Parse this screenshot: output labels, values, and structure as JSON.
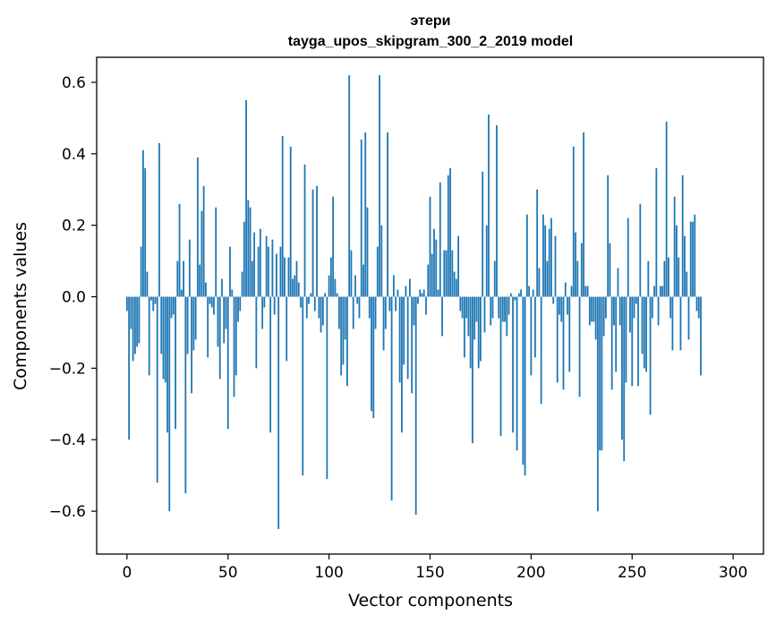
{
  "chart_data": {
    "type": "bar",
    "title": "этери",
    "subtitle": "tayga_upos_skipgram_300_2_2019 model",
    "xlabel": "Vector components",
    "ylabel": "Components values",
    "xlim": [
      -15,
      315
    ],
    "ylim": [
      -0.72,
      0.67
    ],
    "xticks": [
      0,
      50,
      100,
      150,
      200,
      250,
      300
    ],
    "yticks": [
      0.6,
      0.4,
      0.2,
      0.0,
      -0.2,
      -0.4,
      -0.6
    ],
    "ytick_labels": [
      "0.6",
      "0.4",
      "0.2",
      "0.0",
      "−0.2",
      "−0.4",
      "−0.6"
    ],
    "bar_color": "#1f77b4",
    "values": [
      -0.04,
      -0.4,
      -0.09,
      -0.18,
      -0.16,
      -0.14,
      -0.13,
      0.14,
      0.41,
      0.36,
      0.07,
      -0.22,
      -0.01,
      -0.04,
      -0.02,
      -0.52,
      0.43,
      -0.16,
      -0.23,
      -0.24,
      -0.38,
      -0.6,
      -0.06,
      -0.05,
      -0.37,
      0.1,
      0.26,
      0.02,
      0.1,
      -0.55,
      -0.16,
      0.16,
      -0.27,
      -0.15,
      -0.12,
      0.39,
      0.09,
      0.24,
      0.31,
      0.04,
      -0.17,
      -0.02,
      -0.03,
      -0.05,
      0.25,
      -0.14,
      -0.23,
      0.05,
      -0.13,
      -0.09,
      -0.37,
      0.14,
      0.02,
      -0.28,
      -0.22,
      -0.07,
      -0.04,
      0.07,
      0.21,
      0.55,
      0.27,
      0.25,
      0.1,
      0.18,
      -0.2,
      0.14,
      0.19,
      -0.09,
      -0.03,
      0.17,
      0.14,
      -0.38,
      0.16,
      -0.05,
      0.12,
      -0.65,
      0.14,
      0.45,
      0.11,
      -0.18,
      0.11,
      0.42,
      0.05,
      0.06,
      0.1,
      0.04,
      -0.03,
      -0.5,
      0.37,
      -0.06,
      -0.02,
      0.01,
      0.3,
      -0.04,
      0.31,
      -0.06,
      -0.1,
      -0.08,
      0.01,
      -0.51,
      0.06,
      0.11,
      0.28,
      0.05,
      0.01,
      -0.09,
      -0.22,
      -0.19,
      -0.12,
      -0.25,
      0.62,
      0.13,
      -0.09,
      0.06,
      -0.02,
      -0.06,
      0.44,
      0.09,
      0.46,
      0.25,
      -0.06,
      -0.32,
      -0.34,
      -0.09,
      0.14,
      0.62,
      0.2,
      -0.15,
      -0.09,
      0.46,
      -0.04,
      -0.57,
      0.06,
      -0.04,
      0.02,
      -0.24,
      -0.38,
      -0.19,
      0.03,
      -0.23,
      0.05,
      -0.27,
      -0.08,
      -0.61,
      -0.02,
      0.02,
      0.01,
      0.02,
      -0.05,
      0.09,
      0.28,
      0.12,
      0.19,
      0.16,
      0.02,
      0.32,
      -0.11,
      0.13,
      0.13,
      0.34,
      0.36,
      0.13,
      0.07,
      0.05,
      0.17,
      -0.04,
      -0.06,
      -0.17,
      -0.06,
      -0.11,
      -0.2,
      -0.41,
      -0.12,
      -0.07,
      -0.2,
      -0.18,
      0.35,
      -0.1,
      0.2,
      0.51,
      -0.08,
      -0.06,
      0.1,
      0.48,
      -0.06,
      -0.39,
      -0.07,
      -0.07,
      -0.11,
      -0.05,
      0.01,
      -0.38,
      -0.01,
      -0.43,
      0.01,
      0.02,
      -0.47,
      -0.5,
      0.23,
      0.03,
      -0.22,
      0.02,
      -0.17,
      0.3,
      0.08,
      -0.3,
      0.23,
      0.2,
      0.1,
      0.19,
      0.22,
      -0.02,
      0.17,
      -0.24,
      -0.05,
      -0.07,
      -0.26,
      0.04,
      -0.05,
      -0.21,
      0.03,
      0.42,
      0.18,
      0.1,
      -0.28,
      0.15,
      0.46,
      0.03,
      0.03,
      -0.08,
      -0.07,
      -0.07,
      -0.12,
      -0.6,
      -0.43,
      -0.43,
      -0.11,
      -0.06,
      0.34,
      0.15,
      -0.26,
      -0.08,
      -0.21,
      0.08,
      -0.08,
      -0.4,
      -0.46,
      -0.24,
      0.22,
      -0.1,
      -0.25,
      -0.06,
      -0.02,
      -0.25,
      0.26,
      -0.16,
      -0.2,
      -0.21,
      0.1,
      -0.33,
      -0.06,
      0.03,
      0.36,
      -0.08,
      0.03,
      0.03,
      0.1,
      0.49,
      0.11,
      -0.06,
      -0.15,
      0.28,
      0.2,
      0.11,
      -0.15,
      0.34,
      0.17,
      0.07,
      -0.12,
      0.21,
      0.21,
      0.23,
      -0.04,
      -0.06,
      -0.22
    ]
  }
}
